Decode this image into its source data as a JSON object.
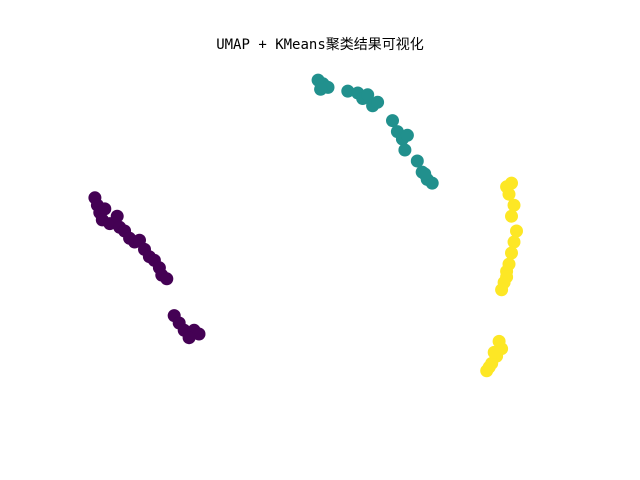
{
  "chart_data": {
    "type": "scatter",
    "title": "UMAP + KMeans聚类结果可视化",
    "xlabel": "",
    "ylabel": "",
    "axes_visible": false,
    "grid": false,
    "legend": "none",
    "xlim": [
      0,
      10
    ],
    "ylim": [
      0,
      10
    ],
    "series": [
      {
        "color": "#440154",
        "points": [
          [
            0.3,
            6.2
          ],
          [
            0.35,
            6.0
          ],
          [
            0.4,
            5.8
          ],
          [
            0.5,
            5.9
          ],
          [
            0.45,
            5.6
          ],
          [
            0.6,
            5.5
          ],
          [
            0.75,
            5.7
          ],
          [
            0.8,
            5.4
          ],
          [
            0.9,
            5.3
          ],
          [
            1.0,
            5.1
          ],
          [
            1.1,
            5.0
          ],
          [
            1.2,
            5.05
          ],
          [
            1.3,
            4.8
          ],
          [
            1.4,
            4.6
          ],
          [
            1.5,
            4.5
          ],
          [
            1.6,
            4.3
          ],
          [
            1.65,
            4.1
          ],
          [
            1.75,
            4.0
          ],
          [
            1.9,
            3.0
          ],
          [
            2.0,
            2.8
          ],
          [
            2.1,
            2.6
          ],
          [
            2.2,
            2.5
          ],
          [
            2.3,
            2.6
          ],
          [
            2.4,
            2.5
          ],
          [
            2.2,
            2.4
          ]
        ]
      },
      {
        "color": "#21908d",
        "points": [
          [
            4.8,
            9.4
          ],
          [
            4.9,
            9.3
          ],
          [
            5.0,
            9.2
          ],
          [
            4.85,
            9.15
          ],
          [
            5.4,
            9.1
          ],
          [
            5.6,
            9.05
          ],
          [
            5.7,
            8.9
          ],
          [
            5.8,
            9.0
          ],
          [
            5.9,
            8.7
          ],
          [
            6.0,
            8.8
          ],
          [
            6.3,
            8.3
          ],
          [
            6.4,
            8.0
          ],
          [
            6.5,
            7.8
          ],
          [
            6.6,
            7.9
          ],
          [
            6.55,
            7.5
          ],
          [
            6.8,
            7.2
          ],
          [
            6.9,
            6.9
          ],
          [
            7.0,
            6.7
          ],
          [
            7.1,
            6.6
          ],
          [
            6.95,
            6.85
          ]
        ]
      },
      {
        "color": "#fde725",
        "points": [
          [
            8.6,
            6.5
          ],
          [
            8.7,
            6.6
          ],
          [
            8.65,
            6.3
          ],
          [
            8.75,
            6.0
          ],
          [
            8.7,
            5.7
          ],
          [
            8.8,
            5.3
          ],
          [
            8.75,
            5.0
          ],
          [
            8.7,
            4.7
          ],
          [
            8.65,
            4.4
          ],
          [
            8.6,
            4.2
          ],
          [
            8.55,
            3.9
          ],
          [
            8.5,
            3.7
          ],
          [
            8.4,
            1.9
          ],
          [
            8.5,
            2.1
          ],
          [
            8.45,
            2.3
          ],
          [
            8.3,
            1.7
          ],
          [
            8.2,
            1.5
          ],
          [
            8.25,
            1.6
          ],
          [
            8.35,
            2.0
          ],
          [
            8.6,
            4.05
          ]
        ]
      }
    ]
  }
}
